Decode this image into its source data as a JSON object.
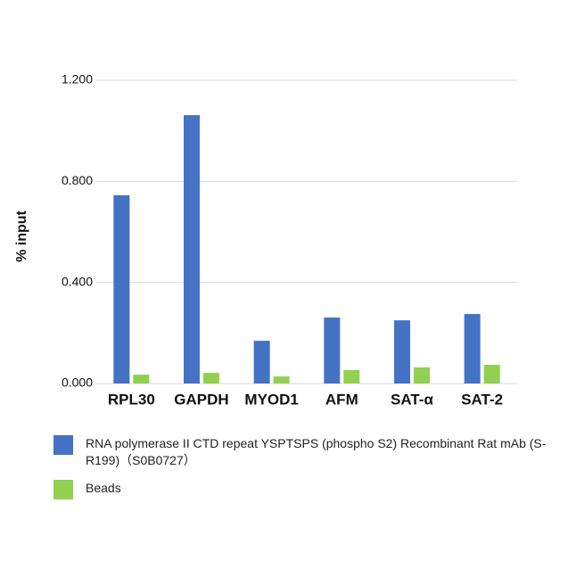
{
  "chart_data": {
    "type": "bar",
    "y_label": "% input",
    "categories": [
      "RPL30",
      "GAPDH",
      "MYOD1",
      "AFM",
      "SAT-α",
      "SAT-2"
    ],
    "series": [
      {
        "name": "RNA polymerase II CTD repeat YSPTSPS (phospho S2) Recombinant Rat mAb (S-R199)（S0B0727）",
        "color": "#4472c4",
        "values": [
          0.745,
          1.062,
          0.169,
          0.261,
          0.25,
          0.275
        ]
      },
      {
        "name": "Beads",
        "color": "#92d050",
        "values": [
          0.035,
          0.042,
          0.028,
          0.053,
          0.064,
          0.074
        ]
      }
    ],
    "ylim": [
      0,
      1.2
    ],
    "yticks": [
      {
        "value": 0,
        "label": "0.000"
      },
      {
        "value": 0.4,
        "label": "0.400"
      },
      {
        "value": 0.8,
        "label": "0.800"
      },
      {
        "value": 1.2,
        "label": "1.200"
      }
    ],
    "grid": true
  }
}
